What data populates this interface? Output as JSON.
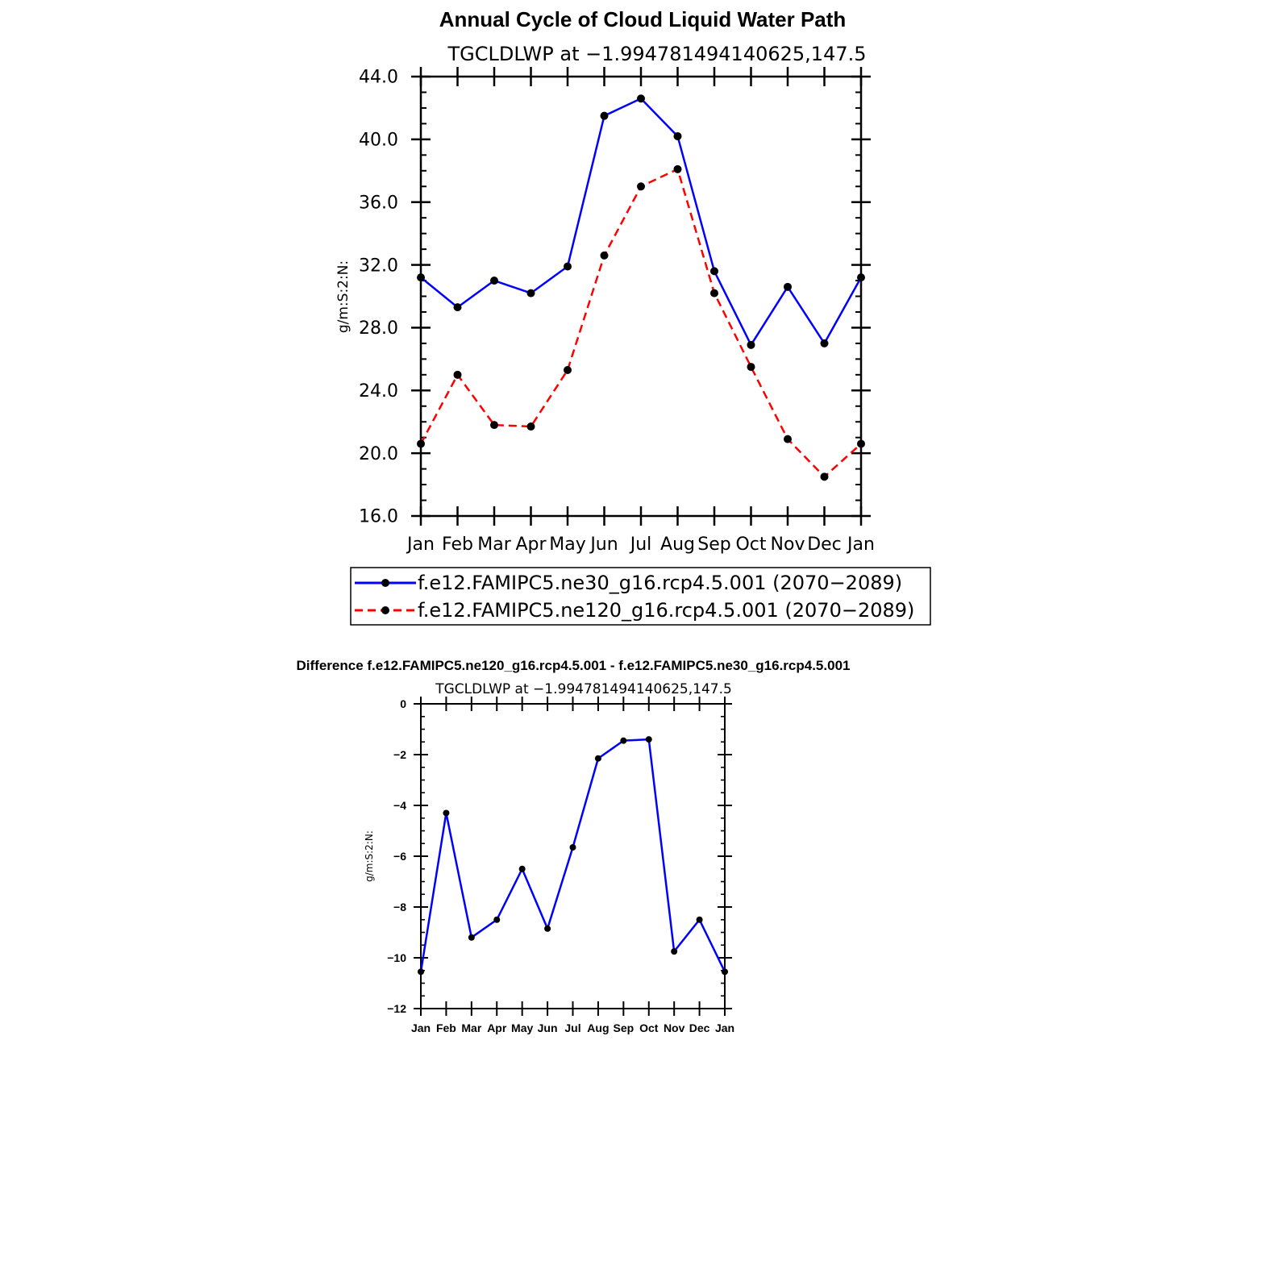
{
  "chart_data": [
    {
      "type": "line",
      "title": "Annual Cycle of Cloud Liquid Water Path",
      "subtitle": "TGCLDLWP  at  −1.994781494140625,147.5",
      "xlabel": "",
      "ylabel": "g/m:S:2:N:",
      "categories": [
        "Jan",
        "Feb",
        "Mar",
        "Apr",
        "May",
        "Jun",
        "Jul",
        "Aug",
        "Sep",
        "Oct",
        "Nov",
        "Dec",
        "Jan"
      ],
      "yticks": [
        "16.0",
        "20.0",
        "24.0",
        "28.0",
        "32.0",
        "36.0",
        "40.0",
        "44.0"
      ],
      "ylim": [
        16,
        44
      ],
      "legend_position": "bottom",
      "series": [
        {
          "name": "f.e12.FAMIPC5.ne30_g16.rcp4.5.001 (2070−2089)",
          "color": "#0000ff",
          "dash": "solid",
          "values": [
            31.2,
            29.3,
            31.0,
            30.2,
            31.9,
            41.5,
            42.6,
            40.2,
            31.6,
            26.9,
            30.6,
            27.0,
            31.2
          ]
        },
        {
          "name": "f.e12.FAMIPC5.ne120_g16.rcp4.5.001 (2070−2089)",
          "color": "#ff0000",
          "dash": "dashed",
          "values": [
            20.6,
            25.0,
            21.8,
            21.7,
            25.3,
            32.6,
            37.0,
            38.1,
            30.2,
            25.5,
            20.9,
            18.5,
            20.6
          ]
        }
      ]
    },
    {
      "type": "line",
      "title": "Difference f.e12.FAMIPC5.ne120_g16.rcp4.5.001 - f.e12.FAMIPC5.ne30_g16.rcp4.5.001",
      "subtitle": "TGCLDLWP  at  −1.994781494140625,147.5",
      "xlabel": "",
      "ylabel": "g/m:S:2:N:",
      "categories": [
        "Jan",
        "Feb",
        "Mar",
        "Apr",
        "May",
        "Jun",
        "Jul",
        "Aug",
        "Sep",
        "Oct",
        "Nov",
        "Dec",
        "Jan"
      ],
      "yticks": [
        "−12",
        "−10",
        "−8",
        "−6",
        "−4",
        "−2",
        "0"
      ],
      "ylim": [
        -12,
        0
      ],
      "series": [
        {
          "color": "#0000ff",
          "dash": "solid",
          "values": [
            -10.55,
            -4.3,
            -9.2,
            -8.5,
            -6.5,
            -8.85,
            -5.65,
            -2.15,
            -1.45,
            -1.4,
            -9.75,
            -8.5,
            -10.55
          ]
        }
      ]
    }
  ]
}
